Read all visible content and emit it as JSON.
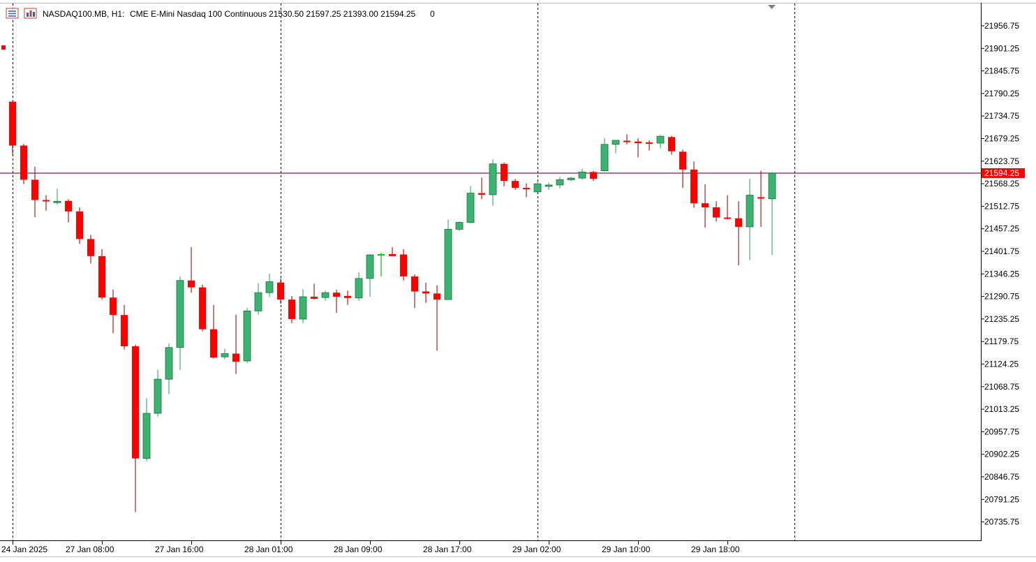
{
  "header": {
    "symbol": "NASDAQ100.MB, H1:",
    "description": "CME E-Mini Nasdaq 100 Continuous",
    "ohlc": "21530.50 21597.25 21393.00 21594.25",
    "extra": "0",
    "icons": [
      "table-icon",
      "chart-properties-icon"
    ]
  },
  "colors": {
    "bull_body": "#3cb371",
    "bear_body": "#ff0000",
    "bull_wick": "#3cb371",
    "bear_wick": "#b01a1a",
    "doji": "#00c000",
    "price_line": "#8b1a4a",
    "price_label_bg": "#ff0000",
    "border": "#000000",
    "grid_separator": "#000000"
  },
  "chart_data": {
    "type": "candlestick",
    "grid": false,
    "y_ticks": [
      "21956.75",
      "21901.25",
      "21845.75",
      "21790.25",
      "21734.75",
      "21679.25",
      "21623.75",
      "21568.25",
      "21512.75",
      "21457.25",
      "21401.75",
      "21346.25",
      "21290.75",
      "21235.25",
      "21179.75",
      "21124.25",
      "21068.75",
      "21013.25",
      "20957.75",
      "20902.25",
      "20846.75",
      "20791.25",
      "20735.75"
    ],
    "x_labels": [
      "24 Jan 2025",
      "27 Jan 08:00",
      "27 Jan 16:00",
      "28 Jan 01:00",
      "28 Jan 09:00",
      "28 Jan 17:00",
      "29 Jan 02:00",
      "29 Jan 10:00",
      "29 Jan 18:00"
    ],
    "x_label_bar_index": [
      0,
      8,
      16,
      24,
      32,
      40,
      48,
      56,
      64
    ],
    "separator_bar_index": [
      0,
      24,
      47,
      70
    ],
    "current_price": "21594.25",
    "candles": [
      {
        "o": 21770,
        "h": 21770,
        "l": 21640,
        "c": 21662
      },
      {
        "o": 21662,
        "h": 21666,
        "l": 21567,
        "c": 21578
      },
      {
        "o": 21578,
        "h": 21610,
        "l": 21486,
        "c": 21528
      },
      {
        "o": 21528,
        "h": 21540,
        "l": 21502,
        "c": 21525
      },
      {
        "o": 21523,
        "h": 21556,
        "l": 21517,
        "c": 21525
      },
      {
        "o": 21526,
        "h": 21530,
        "l": 21473,
        "c": 21500
      },
      {
        "o": 21500,
        "h": 21510,
        "l": 21420,
        "c": 21432
      },
      {
        "o": 21432,
        "h": 21442,
        "l": 21372,
        "c": 21390
      },
      {
        "o": 21390,
        "h": 21407,
        "l": 21283,
        "c": 21288
      },
      {
        "o": 21288,
        "h": 21308,
        "l": 21200,
        "c": 21245
      },
      {
        "o": 21245,
        "h": 21270,
        "l": 21160,
        "c": 21168
      },
      {
        "o": 21168,
        "h": 21172,
        "l": 20760,
        "c": 20892
      },
      {
        "o": 20892,
        "h": 21040,
        "l": 20885,
        "c": 21003
      },
      {
        "o": 21003,
        "h": 21110,
        "l": 20995,
        "c": 21087
      },
      {
        "o": 21087,
        "h": 21175,
        "l": 21050,
        "c": 21165
      },
      {
        "o": 21165,
        "h": 21340,
        "l": 21110,
        "c": 21330
      },
      {
        "o": 21330,
        "h": 21412,
        "l": 21300,
        "c": 21313
      },
      {
        "o": 21313,
        "h": 21320,
        "l": 21205,
        "c": 21210
      },
      {
        "o": 21210,
        "h": 21270,
        "l": 21138,
        "c": 21140
      },
      {
        "o": 21142,
        "h": 21162,
        "l": 21136,
        "c": 21150
      },
      {
        "o": 21150,
        "h": 21246,
        "l": 21100,
        "c": 21130
      },
      {
        "o": 21132,
        "h": 21262,
        "l": 21127,
        "c": 21255
      },
      {
        "o": 21255,
        "h": 21323,
        "l": 21246,
        "c": 21300
      },
      {
        "o": 21300,
        "h": 21347,
        "l": 21290,
        "c": 21327
      },
      {
        "o": 21325,
        "h": 21335,
        "l": 21273,
        "c": 21283
      },
      {
        "o": 21283,
        "h": 21292,
        "l": 21225,
        "c": 21235
      },
      {
        "o": 21235,
        "h": 21308,
        "l": 21225,
        "c": 21290
      },
      {
        "o": 21290,
        "h": 21322,
        "l": 21283,
        "c": 21285
      },
      {
        "o": 21288,
        "h": 21305,
        "l": 21280,
        "c": 21300
      },
      {
        "o": 21300,
        "h": 21307,
        "l": 21250,
        "c": 21290
      },
      {
        "o": 21292,
        "h": 21305,
        "l": 21270,
        "c": 21287
      },
      {
        "o": 21287,
        "h": 21350,
        "l": 21280,
        "c": 21335
      },
      {
        "o": 21335,
        "h": 21395,
        "l": 21290,
        "c": 21393
      },
      {
        "o": 21395,
        "h": 21398,
        "l": 21340,
        "c": 21395
      },
      {
        "o": 21395,
        "h": 21412,
        "l": 21390,
        "c": 21390
      },
      {
        "o": 21394,
        "h": 21407,
        "l": 21330,
        "c": 21340
      },
      {
        "o": 21340,
        "h": 21345,
        "l": 21262,
        "c": 21303
      },
      {
        "o": 21303,
        "h": 21325,
        "l": 21275,
        "c": 21298
      },
      {
        "o": 21298,
        "h": 21318,
        "l": 21157,
        "c": 21283
      },
      {
        "o": 21283,
        "h": 21480,
        "l": 21283,
        "c": 21456
      },
      {
        "o": 21456,
        "h": 21475,
        "l": 21452,
        "c": 21473
      },
      {
        "o": 21473,
        "h": 21562,
        "l": 21470,
        "c": 21545
      },
      {
        "o": 21545,
        "h": 21583,
        "l": 21530,
        "c": 21541
      },
      {
        "o": 21541,
        "h": 21628,
        "l": 21514,
        "c": 21617
      },
      {
        "o": 21617,
        "h": 21620,
        "l": 21562,
        "c": 21575
      },
      {
        "o": 21575,
        "h": 21580,
        "l": 21553,
        "c": 21558
      },
      {
        "o": 21558,
        "h": 21569,
        "l": 21535,
        "c": 21555
      },
      {
        "o": 21548,
        "h": 21575,
        "l": 21545,
        "c": 21568
      },
      {
        "o": 21563,
        "h": 21570,
        "l": 21553,
        "c": 21565
      },
      {
        "o": 21565,
        "h": 21585,
        "l": 21557,
        "c": 21578
      },
      {
        "o": 21578,
        "h": 21585,
        "l": 21574,
        "c": 21582
      },
      {
        "o": 21582,
        "h": 21605,
        "l": 21578,
        "c": 21597
      },
      {
        "o": 21597,
        "h": 21600,
        "l": 21575,
        "c": 21580
      },
      {
        "o": 21600,
        "h": 21680,
        "l": 21598,
        "c": 21665
      },
      {
        "o": 21665,
        "h": 21675,
        "l": 21643,
        "c": 21675
      },
      {
        "o": 21674,
        "h": 21690,
        "l": 21665,
        "c": 21673
      },
      {
        "o": 21672,
        "h": 21680,
        "l": 21633,
        "c": 21668
      },
      {
        "o": 21670,
        "h": 21675,
        "l": 21650,
        "c": 21668
      },
      {
        "o": 21668,
        "h": 21688,
        "l": 21655,
        "c": 21685
      },
      {
        "o": 21683,
        "h": 21686,
        "l": 21640,
        "c": 21648
      },
      {
        "o": 21647,
        "h": 21652,
        "l": 21558,
        "c": 21603
      },
      {
        "o": 21603,
        "h": 21623,
        "l": 21509,
        "c": 21520
      },
      {
        "o": 21520,
        "h": 21567,
        "l": 21460,
        "c": 21510
      },
      {
        "o": 21510,
        "h": 21525,
        "l": 21475,
        "c": 21485
      },
      {
        "o": 21485,
        "h": 21540,
        "l": 21480,
        "c": 21483
      },
      {
        "o": 21483,
        "h": 21525,
        "l": 21367,
        "c": 21462
      },
      {
        "o": 21462,
        "h": 21580,
        "l": 21380,
        "c": 21540
      },
      {
        "o": 21535,
        "h": 21600,
        "l": 21462,
        "c": 21532
      },
      {
        "o": 21531,
        "h": 21597,
        "l": 21393,
        "c": 21594
      }
    ]
  }
}
